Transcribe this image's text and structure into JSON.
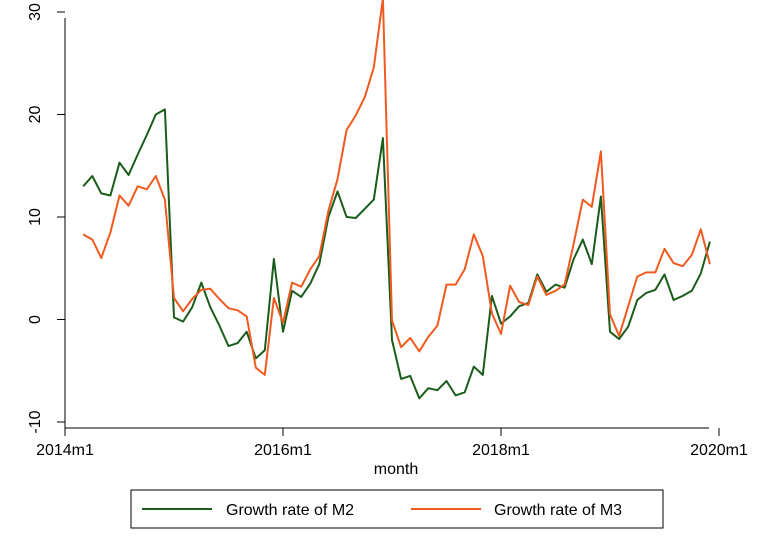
{
  "chart_data": {
    "type": "line",
    "title": "",
    "xlabel": "month",
    "ylabel": "",
    "xlim": [
      2014.0,
      2020.0
    ],
    "ylim": [
      -10,
      30
    ],
    "grid": false,
    "legend_position": "bottom",
    "x_ticks": [
      {
        "value": 2014,
        "label": "2014m1"
      },
      {
        "value": 2016,
        "label": "2016m1"
      },
      {
        "value": 2018,
        "label": "2018m1"
      },
      {
        "value": 2020,
        "label": "2020m1"
      }
    ],
    "y_ticks": [
      {
        "value": -10,
        "label": "-10"
      },
      {
        "value": 0,
        "label": "0"
      },
      {
        "value": 10,
        "label": "10"
      },
      {
        "value": 20,
        "label": "20"
      },
      {
        "value": 30,
        "label": "30"
      }
    ],
    "x_start_label": "2014m3",
    "series": [
      {
        "name": "Growth rate of M2",
        "color": "#1a5c1a",
        "values": [
          13.0,
          14.0,
          12.3,
          12.1,
          15.3,
          14.1,
          16.1,
          18.0,
          20.0,
          20.5,
          0.2,
          -0.2,
          1.2,
          3.6,
          1.2,
          -0.6,
          -2.6,
          -2.3,
          -1.2,
          -3.8,
          -3.0,
          5.9,
          -1.2,
          2.8,
          2.2,
          3.5,
          5.4,
          10.0,
          12.5,
          10.0,
          9.9,
          10.8,
          11.7,
          17.7,
          -2.0,
          -5.8,
          -5.5,
          -7.7,
          -6.7,
          -6.9,
          -6.0,
          -7.4,
          -7.1,
          -4.6,
          -5.4,
          2.3,
          -0.4,
          0.3,
          1.3,
          1.6,
          4.4,
          2.7,
          3.4,
          3.1,
          5.9,
          7.8,
          5.4,
          12.0,
          -1.2,
          -1.9,
          -0.7,
          1.9,
          2.6,
          2.9,
          4.4,
          1.9,
          2.3,
          2.8,
          4.5,
          7.6
        ]
      },
      {
        "name": "Growth rate of M3",
        "color": "#f05a1e",
        "values": [
          8.3,
          7.8,
          6.0,
          8.5,
          12.1,
          11.1,
          13.0,
          12.7,
          14.0,
          11.7,
          2.1,
          0.8,
          2.0,
          2.9,
          3.0,
          2.0,
          1.1,
          0.9,
          0.3,
          -4.7,
          -5.4,
          2.1,
          -0.3,
          3.6,
          3.2,
          4.9,
          6.2,
          10.6,
          13.7,
          18.5,
          19.9,
          21.7,
          24.6,
          31.3,
          -0.1,
          -2.7,
          -1.8,
          -3.1,
          -1.7,
          -0.6,
          3.4,
          3.4,
          4.9,
          8.3,
          6.2,
          0.6,
          -1.4,
          3.3,
          1.7,
          1.4,
          4.2,
          2.4,
          2.8,
          3.4,
          7.4,
          11.7,
          11.0,
          16.4,
          0.5,
          -1.6,
          1.3,
          4.2,
          4.6,
          4.6,
          6.9,
          5.5,
          5.2,
          6.3,
          8.8,
          5.4
        ]
      }
    ]
  }
}
